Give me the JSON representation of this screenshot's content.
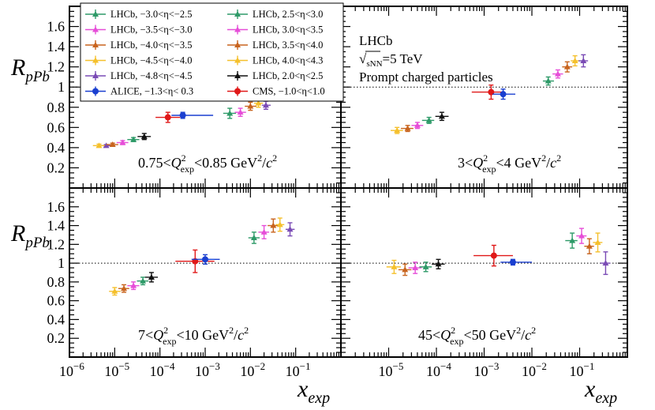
{
  "chart_data": {
    "type": "scatter",
    "title": "",
    "xlabel": "x_exp",
    "ylabel": "R_pPb",
    "xscale": "log",
    "xlim": [
      1e-06,
      1.0
    ],
    "ylim": [
      0.0,
      1.8
    ],
    "x_tick_labels": [
      "10",
      "10",
      "10",
      "10",
      "10",
      "10"
    ],
    "x_tick_exponents": [
      "−6",
      "−5",
      "−4",
      "−3",
      "−2",
      "−1"
    ],
    "y_tick_labels": [
      "0.2",
      "0.4",
      "0.6",
      "0.8",
      "1",
      "1.2",
      "1.4",
      "1.6"
    ],
    "reference_line": 1.0,
    "annotations": {
      "experiment": "LHCb",
      "energy_label": "sNN",
      "energy_value": "=5 TeV",
      "energy_symbol": "√",
      "description": "Prompt charged particles"
    },
    "legend": [
      {
        "label": "LHCb,  −3.0<η<−2.5",
        "color": "#2e9a68"
      },
      {
        "label": "LHCb,  2.5<η<3.0",
        "color": "#2e9a68"
      },
      {
        "label": "LHCb,  −3.5<η<−3.0",
        "color": "#e64ed8"
      },
      {
        "label": "LHCb,  3.0<η<3.5",
        "color": "#e64ed8"
      },
      {
        "label": "LHCb,  −4.0<η<−3.5",
        "color": "#c8641e"
      },
      {
        "label": "LHCb,  3.5<η<4.0",
        "color": "#c8641e"
      },
      {
        "label": "LHCb,  −4.5<η<−4.0",
        "color": "#f5c02c"
      },
      {
        "label": "LHCb,  4.0<η<4.3",
        "color": "#f5c02c"
      },
      {
        "label": "LHCb,  −4.8<η<−4.5",
        "color": "#7a4bb5"
      },
      {
        "label": "LHCb,  2.0<η<2.5",
        "color": "#111111"
      },
      {
        "label": "ALICE, −1.3<η< 0.3",
        "color": "#1a3fd0"
      },
      {
        "label": "CMS,  −1.0<η<1.0",
        "color": "#e01818"
      }
    ],
    "panels": [
      {
        "range_label": {
          "pre": "0.75<",
          "q": "Q",
          "sup": "2",
          "sub": "exp",
          "post": "<0.85 GeV",
          "post_sup": "2",
          "post2": "/",
          "c": "c",
          "c_sup": "2"
        },
        "series": [
          {
            "name": "LHCb −4.8<η<−4.5",
            "color": "#7a4bb5",
            "points": [
              {
                "x": 6.5e-06,
                "y": 0.42,
                "xlo": 4.5e-06,
                "xhi": 9e-06,
                "err": 0.01
              }
            ]
          },
          {
            "name": "LHCb −4.5<η<−4.0",
            "color": "#f5c02c",
            "points": [
              {
                "x": 4.5e-06,
                "y": 0.42,
                "xlo": 3.3e-06,
                "xhi": 6e-06,
                "err": 0.015
              }
            ]
          },
          {
            "name": "LHCb −4.0<η<−3.5",
            "color": "#c8641e",
            "points": [
              {
                "x": 9e-06,
                "y": 0.43,
                "xlo": 6.5e-06,
                "xhi": 1.2e-05,
                "err": 0.015
              }
            ]
          },
          {
            "name": "LHCb −3.5<η<−3.0",
            "color": "#e64ed8",
            "points": [
              {
                "x": 1.5e-05,
                "y": 0.45,
                "xlo": 1.1e-05,
                "xhi": 2e-05,
                "err": 0.02
              }
            ]
          },
          {
            "name": "LHCb −3.0<η<−2.5",
            "color": "#2e9a68",
            "points": [
              {
                "x": 2.6e-05,
                "y": 0.48,
                "xlo": 1.9e-05,
                "xhi": 3.5e-05,
                "err": 0.02
              }
            ]
          },
          {
            "name": "LHCb 2.0<η<2.5",
            "color": "#111111",
            "points": [
              {
                "x": 4.5e-05,
                "y": 0.51,
                "xlo": 3.2e-05,
                "xhi": 6.3e-05,
                "err": 0.03
              }
            ]
          },
          {
            "name": "CMS −1.0<η<1.0",
            "color": "#e01818",
            "points": [
              {
                "x": 0.00015,
                "y": 0.7,
                "xlo": 8e-05,
                "xhi": 0.00028,
                "err": 0.05
              }
            ]
          },
          {
            "name": "ALICE −1.3<η<0.3",
            "color": "#1a3fd0",
            "points": [
              {
                "x": 0.00032,
                "y": 0.72,
                "xlo": 0.00018,
                "xhi": 0.0015,
                "err": 0.03
              }
            ]
          },
          {
            "name": "LHCb 2.5<η<3.0",
            "color": "#2e9a68",
            "points": [
              {
                "x": 0.0035,
                "y": 0.74,
                "xlo": 0.0025,
                "xhi": 0.0048,
                "err": 0.05
              }
            ]
          },
          {
            "name": "LHCb 3.0<η<3.5",
            "color": "#e64ed8",
            "points": [
              {
                "x": 0.006,
                "y": 0.75,
                "xlo": 0.0045,
                "xhi": 0.008,
                "err": 0.04
              }
            ]
          },
          {
            "name": "LHCb 3.5<η<4.0",
            "color": "#c8641e",
            "points": [
              {
                "x": 0.01,
                "y": 0.81,
                "xlo": 0.0075,
                "xhi": 0.0135,
                "err": 0.04
              }
            ]
          },
          {
            "name": "LHCb 4.0<η<4.3",
            "color": "#f5c02c",
            "points": [
              {
                "x": 0.015,
                "y": 0.84,
                "xlo": 0.012,
                "xhi": 0.019,
                "err": 0.04
              }
            ]
          },
          {
            "name": "LHCb −4.8<η<−4.5 (fwd)",
            "color": "#7a4bb5",
            "points": [
              {
                "x": 0.022,
                "y": 0.82,
                "xlo": 0.018,
                "xhi": 0.028,
                "err": 0.04
              }
            ]
          }
        ]
      },
      {
        "range_label": {
          "pre": "3<",
          "q": "Q",
          "sup": "2",
          "sub": "exp",
          "post": "<4 GeV",
          "post_sup": "2",
          "post2": "/",
          "c": "c",
          "c_sup": "2"
        },
        "series": [
          {
            "name": "LHCb −4.5<η<−4.0",
            "color": "#f5c02c",
            "points": [
              {
                "x": 1.5e-05,
                "y": 0.57,
                "xlo": 1.1e-05,
                "xhi": 2e-05,
                "err": 0.03
              }
            ]
          },
          {
            "name": "LHCb −4.0<η<−3.5",
            "color": "#c8641e",
            "points": [
              {
                "x": 2.5e-05,
                "y": 0.59,
                "xlo": 1.8e-05,
                "xhi": 3.3e-05,
                "err": 0.03
              }
            ]
          },
          {
            "name": "LHCb −3.5<η<−3.0",
            "color": "#e64ed8",
            "points": [
              {
                "x": 4e-05,
                "y": 0.62,
                "xlo": 3e-05,
                "xhi": 5.3e-05,
                "err": 0.03
              }
            ]
          },
          {
            "name": "LHCb −3.0<η<−2.5",
            "color": "#2e9a68",
            "points": [
              {
                "x": 7e-05,
                "y": 0.67,
                "xlo": 5e-05,
                "xhi": 9e-05,
                "err": 0.03
              }
            ]
          },
          {
            "name": "LHCb 2.0<η<2.5",
            "color": "#111111",
            "points": [
              {
                "x": 0.00013,
                "y": 0.71,
                "xlo": 9.5e-05,
                "xhi": 0.00018,
                "err": 0.04
              }
            ]
          },
          {
            "name": "CMS −1.0<η<1.0",
            "color": "#e01818",
            "points": [
              {
                "x": 0.0014,
                "y": 0.95,
                "xlo": 0.00055,
                "xhi": 0.0024,
                "err": 0.07
              }
            ]
          },
          {
            "name": "ALICE −1.3<η<0.3",
            "color": "#1a3fd0",
            "points": [
              {
                "x": 0.0025,
                "y": 0.93,
                "xlo": 0.0015,
                "xhi": 0.0045,
                "err": 0.05
              }
            ]
          },
          {
            "name": "LHCb 2.5<η<3.0",
            "color": "#2e9a68",
            "points": [
              {
                "x": 0.022,
                "y": 1.06,
                "xlo": 0.017,
                "xhi": 0.029,
                "err": 0.04
              }
            ]
          },
          {
            "name": "LHCb 3.0<η<3.5",
            "color": "#e64ed8",
            "points": [
              {
                "x": 0.035,
                "y": 1.13,
                "xlo": 0.027,
                "xhi": 0.045,
                "err": 0.04
              }
            ]
          },
          {
            "name": "LHCb 3.5<η<4.0",
            "color": "#c8641e",
            "points": [
              {
                "x": 0.055,
                "y": 1.2,
                "xlo": 0.043,
                "xhi": 0.07,
                "err": 0.05
              }
            ]
          },
          {
            "name": "LHCb 4.0<η<4.3",
            "color": "#f5c02c",
            "points": [
              {
                "x": 0.08,
                "y": 1.26,
                "xlo": 0.065,
                "xhi": 0.1,
                "err": 0.05
              }
            ]
          },
          {
            "name": "LHCb −4.8<η<−4.5 (fwd)",
            "color": "#7a4bb5",
            "points": [
              {
                "x": 0.12,
                "y": 1.26,
                "xlo": 0.095,
                "xhi": 0.15,
                "err": 0.06
              }
            ]
          }
        ]
      },
      {
        "range_label": {
          "pre": "7<",
          "q": "Q",
          "sup": "2",
          "sub": "exp",
          "post": "<10 GeV",
          "post_sup": "2",
          "post2": "/",
          "c": "c",
          "c_sup": "2"
        },
        "series": [
          {
            "name": "LHCb −4.5<η<−4.0",
            "color": "#f5c02c",
            "points": [
              {
                "x": 1e-05,
                "y": 0.7,
                "xlo": 7.5e-06,
                "xhi": 1.35e-05,
                "err": 0.04
              }
            ]
          },
          {
            "name": "LHCb −4.0<η<−3.5",
            "color": "#c8641e",
            "points": [
              {
                "x": 1.6e-05,
                "y": 0.73,
                "xlo": 1.2e-05,
                "xhi": 2.1e-05,
                "err": 0.04
              }
            ]
          },
          {
            "name": "LHCb −3.5<η<−3.0",
            "color": "#e64ed8",
            "points": [
              {
                "x": 2.6e-05,
                "y": 0.76,
                "xlo": 1.9e-05,
                "xhi": 3.5e-05,
                "err": 0.04
              }
            ]
          },
          {
            "name": "LHCb −3.0<η<−2.5",
            "color": "#2e9a68",
            "points": [
              {
                "x": 4.2e-05,
                "y": 0.81,
                "xlo": 3.1e-05,
                "xhi": 5.6e-05,
                "err": 0.04
              }
            ]
          },
          {
            "name": "LHCb 2.0<η<2.5",
            "color": "#111111",
            "points": [
              {
                "x": 6.5e-05,
                "y": 0.85,
                "xlo": 4.7e-05,
                "xhi": 9e-05,
                "err": 0.05
              }
            ]
          },
          {
            "name": "CMS −1.0<η<1.0",
            "color": "#e01818",
            "points": [
              {
                "x": 0.0006,
                "y": 1.02,
                "xlo": 0.00022,
                "xhi": 0.0016,
                "err": 0.12
              }
            ]
          },
          {
            "name": "ALICE −1.3<η<0.3",
            "color": "#1a3fd0",
            "points": [
              {
                "x": 0.001,
                "y": 1.04,
                "xlo": 0.0005,
                "xhi": 0.0021,
                "err": 0.05
              }
            ]
          },
          {
            "name": "LHCb 2.5<η<3.0",
            "color": "#2e9a68",
            "points": [
              {
                "x": 0.012,
                "y": 1.27,
                "xlo": 0.009,
                "xhi": 0.016,
                "err": 0.06
              }
            ]
          },
          {
            "name": "LHCb 3.0<η<3.5",
            "color": "#e64ed8",
            "points": [
              {
                "x": 0.02,
                "y": 1.33,
                "xlo": 0.015,
                "xhi": 0.026,
                "err": 0.07
              }
            ]
          },
          {
            "name": "LHCb 3.5<η<4.0",
            "color": "#c8641e",
            "points": [
              {
                "x": 0.032,
                "y": 1.4,
                "xlo": 0.024,
                "xhi": 0.042,
                "err": 0.07
              }
            ]
          },
          {
            "name": "LHCb 4.0<η<4.3",
            "color": "#f5c02c",
            "points": [
              {
                "x": 0.045,
                "y": 1.41,
                "xlo": 0.036,
                "xhi": 0.056,
                "err": 0.07
              }
            ]
          },
          {
            "name": "LHCb −4.8<η<−4.5 (fwd)",
            "color": "#7a4bb5",
            "points": [
              {
                "x": 0.075,
                "y": 1.36,
                "xlo": 0.06,
                "xhi": 0.095,
                "err": 0.07
              }
            ]
          }
        ]
      },
      {
        "range_label": {
          "pre": "45<",
          "q": "Q",
          "sup": "2",
          "sub": "exp",
          "post": "<50 GeV",
          "post_sup": "2",
          "post2": "/",
          "c": "c",
          "c_sup": "2"
        },
        "series": [
          {
            "name": "LHCb −4.5<η<−4.0",
            "color": "#f5c02c",
            "points": [
              {
                "x": 1.3e-05,
                "y": 0.96,
                "xlo": 9e-06,
                "xhi": 1.8e-05,
                "err": 0.07
              }
            ]
          },
          {
            "name": "LHCb −4.0<η<−3.5",
            "color": "#c8641e",
            "points": [
              {
                "x": 2.2e-05,
                "y": 0.93,
                "xlo": 1.6e-05,
                "xhi": 3e-05,
                "err": 0.06
              }
            ]
          },
          {
            "name": "LHCb −3.5<η<−3.0",
            "color": "#e64ed8",
            "points": [
              {
                "x": 3.6e-05,
                "y": 0.95,
                "xlo": 2.6e-05,
                "xhi": 4.9e-05,
                "err": 0.06
              }
            ]
          },
          {
            "name": "LHCb −3.0<η<−2.5",
            "color": "#2e9a68",
            "points": [
              {
                "x": 6e-05,
                "y": 0.96,
                "xlo": 4.4e-05,
                "xhi": 8e-05,
                "err": 0.05
              }
            ]
          },
          {
            "name": "LHCb 2.0<η<2.5",
            "color": "#111111",
            "points": [
              {
                "x": 0.00011,
                "y": 0.99,
                "xlo": 8e-05,
                "xhi": 0.00015,
                "err": 0.05
              }
            ]
          },
          {
            "name": "CMS −1.0<η<1.0",
            "color": "#e01818",
            "points": [
              {
                "x": 0.0016,
                "y": 1.08,
                "xlo": 0.0006,
                "xhi": 0.004,
                "err": 0.11
              }
            ]
          },
          {
            "name": "ALICE −1.3<η<0.3",
            "color": "#1a3fd0",
            "points": [
              {
                "x": 0.004,
                "y": 1.01,
                "xlo": 0.0022,
                "xhi": 0.01,
                "err": 0.03
              }
            ]
          },
          {
            "name": "LHCb 2.5<η<3.0",
            "color": "#2e9a68",
            "points": [
              {
                "x": 0.07,
                "y": 1.24,
                "xlo": 0.05,
                "xhi": 0.09,
                "err": 0.08
              }
            ]
          },
          {
            "name": "LHCb 3.0<η<3.5",
            "color": "#e64ed8",
            "points": [
              {
                "x": 0.11,
                "y": 1.29,
                "xlo": 0.085,
                "xhi": 0.14,
                "err": 0.08
              }
            ]
          },
          {
            "name": "LHCb 3.5<η<4.0",
            "color": "#c8641e",
            "points": [
              {
                "x": 0.16,
                "y": 1.18,
                "xlo": 0.125,
                "xhi": 0.2,
                "err": 0.08
              }
            ]
          },
          {
            "name": "LHCb 4.0<η<4.3",
            "color": "#f5c02c",
            "points": [
              {
                "x": 0.24,
                "y": 1.22,
                "xlo": 0.19,
                "xhi": 0.3,
                "err": 0.1
              }
            ]
          },
          {
            "name": "LHCb −4.8<η<−4.5 (fwd)",
            "color": "#7a4bb5",
            "points": [
              {
                "x": 0.35,
                "y": 1.0,
                "xlo": 0.27,
                "xhi": 0.44,
                "err": 0.12
              }
            ]
          }
        ]
      }
    ]
  }
}
